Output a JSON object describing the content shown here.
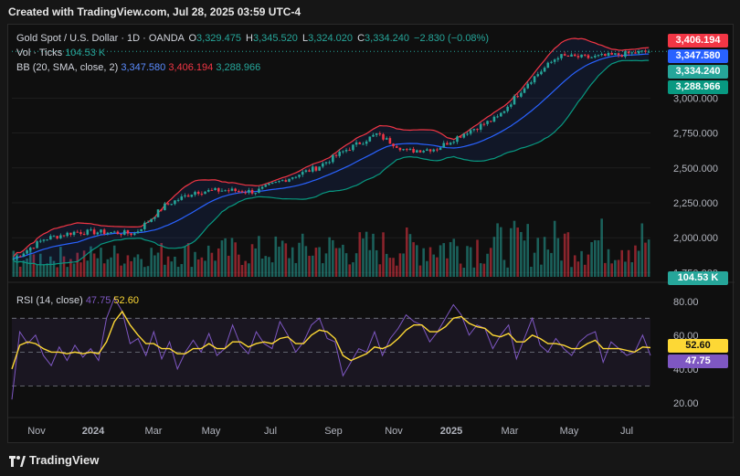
{
  "header": {
    "created": "Created with TradingView.com, Jul 28, 2025 03:59 UTC-4"
  },
  "legend": {
    "symbol": "Gold Spot / U.S. Dollar · 1D · OANDA",
    "o_label": "O",
    "o": "3,329.475",
    "h_label": "H",
    "h": "3,345.520",
    "l_label": "L",
    "l": "3,324.020",
    "c_label": "C",
    "c": "3,334.240",
    "chg": "−2.830 (−0.08%)",
    "vol_label": "Vol · Ticks",
    "vol": "104.53 K",
    "bb_label": "BB (20, SMA, close, 2)",
    "bb_basis": "3,347.580",
    "bb_upper": "3,406.194",
    "bb_lower": "3,288.966",
    "rsi_label": "RSI (14, close)",
    "rsi": "47.75",
    "rsi_ma": "52.60"
  },
  "price_tags": {
    "upper": "3,406.194",
    "basis": "3,347.580",
    "close": "3,334.240",
    "lower": "3,288.966",
    "volume": "104.53 K",
    "rsi_ma": "52.60",
    "rsi": "47.75"
  },
  "colors": {
    "up": "#26a69a",
    "down": "#f23645",
    "bb_basis": "#2962ff",
    "bb_upper": "#f23645",
    "bb_lower": "#089981",
    "rsi": "#7e57c2",
    "rsi_ma": "#fdd835"
  },
  "footer": {
    "brand": "TradingView"
  },
  "chart_data": [
    {
      "type": "line",
      "title": "Gold Spot / U.S. Dollar · 1D · OANDA",
      "x_ticks": [
        "Nov",
        "2024",
        "Mar",
        "May",
        "Jul",
        "Sep",
        "Nov",
        "2025",
        "Mar",
        "May",
        "Jul"
      ],
      "y_ticks": [
        "1,750.000",
        "2,000.000",
        "2,250.000",
        "2,500.000",
        "2,750.000",
        "3,000.000"
      ],
      "ylim": [
        1720,
        3460
      ],
      "series": [
        {
          "name": "Close",
          "x": [
            "2023-10",
            "2023-11",
            "2023-12",
            "2024-01",
            "2024-02",
            "2024-03",
            "2024-04",
            "2024-05",
            "2024-06",
            "2024-07",
            "2024-08",
            "2024-09",
            "2024-10",
            "2024-11",
            "2024-12",
            "2025-01",
            "2025-02",
            "2025-03",
            "2025-04",
            "2025-05",
            "2025-06",
            "2025-07"
          ],
          "values": [
            1850,
            1990,
            2040,
            2040,
            2030,
            2230,
            2330,
            2340,
            2330,
            2420,
            2500,
            2630,
            2740,
            2620,
            2640,
            2760,
            2860,
            3110,
            3300,
            3290,
            3310,
            3334
          ]
        }
      ],
      "grid": true
    },
    {
      "type": "bar",
      "title": "Vol · Ticks",
      "note_value": "104.53 K"
    },
    {
      "type": "line",
      "title": "RSI (14, close)",
      "y_ticks": [
        "20.00",
        "40.00",
        "60.00",
        "80.00"
      ],
      "ylim": [
        14,
        88
      ],
      "bands": [
        30,
        50,
        70
      ],
      "series": [
        {
          "name": "RSI",
          "values": [
            22,
            62,
            55,
            60,
            48,
            42,
            53,
            45,
            54,
            47,
            52,
            45,
            70,
            82,
            74,
            55,
            58,
            48,
            62,
            46,
            56,
            40,
            50,
            57,
            50,
            61,
            48,
            52,
            66,
            54,
            49,
            62,
            55,
            52,
            68,
            60,
            50,
            56,
            66,
            70,
            58,
            56,
            36,
            44,
            52,
            50,
            62,
            48,
            58,
            64,
            72,
            68,
            66,
            56,
            62,
            70,
            78,
            72,
            60,
            66,
            64,
            52,
            60,
            66,
            46,
            58,
            70,
            54,
            50,
            58,
            52,
            48,
            56,
            60,
            62,
            44,
            56,
            52,
            48,
            50,
            60,
            48
          ]
        },
        {
          "name": "RSI-MA",
          "values": [
            40,
            54,
            56,
            55,
            52,
            50,
            50,
            49,
            50,
            49,
            50,
            49,
            56,
            68,
            74,
            66,
            60,
            55,
            55,
            52,
            52,
            49,
            49,
            52,
            52,
            55,
            52,
            52,
            56,
            56,
            53,
            55,
            56,
            55,
            58,
            59,
            55,
            55,
            60,
            63,
            62,
            58,
            48,
            45,
            47,
            49,
            53,
            52,
            54,
            58,
            63,
            66,
            66,
            62,
            62,
            65,
            70,
            71,
            67,
            65,
            64,
            60,
            59,
            61,
            56,
            56,
            60,
            58,
            55,
            55,
            54,
            52,
            52,
            55,
            57,
            52,
            52,
            52,
            51,
            50,
            53,
            52.6
          ]
        }
      ]
    }
  ]
}
